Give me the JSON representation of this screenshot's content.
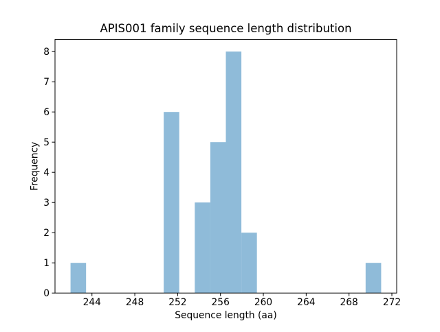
{
  "chart_data": {
    "type": "histogram",
    "title": "APIS001 family sequence length distribution",
    "xlabel": "Sequence length (aa)",
    "ylabel": "Frequency",
    "bar_color": "#8fbbd9",
    "axis_color": "#000000",
    "background_color": "#ffffff",
    "grid": false,
    "legend": null,
    "xlim": [
      240.55,
      272.45
    ],
    "ylim": [
      0,
      8.4
    ],
    "x_ticks": [
      244,
      248,
      252,
      256,
      260,
      264,
      268,
      272
    ],
    "y_ticks": [
      0,
      1,
      2,
      3,
      4,
      5,
      6,
      7,
      8
    ],
    "bin_edges": [
      242.0,
      243.45,
      244.9,
      246.35,
      247.8,
      249.25,
      250.7,
      252.15,
      253.6,
      255.05,
      256.5,
      257.95,
      259.4,
      260.85,
      262.3,
      263.75,
      265.2,
      266.65,
      268.1,
      269.55,
      271.0
    ],
    "counts": [
      1,
      0,
      0,
      0,
      0,
      0,
      6,
      0,
      3,
      5,
      8,
      2,
      0,
      0,
      0,
      0,
      0,
      0,
      0,
      1
    ]
  }
}
